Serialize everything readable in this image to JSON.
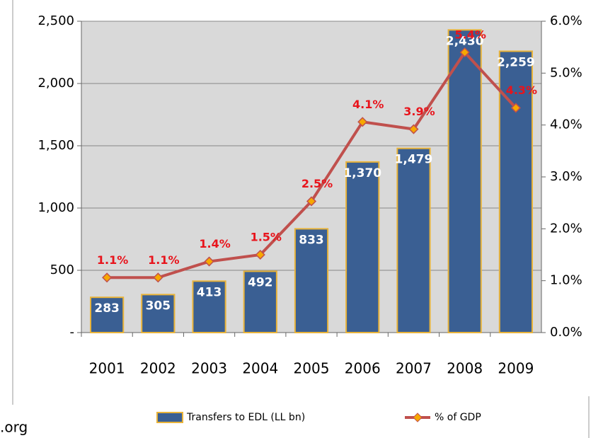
{
  "chart_data": {
    "type": "bar-line",
    "categories": [
      "2001",
      "2002",
      "2003",
      "2004",
      "2005",
      "2006",
      "2007",
      "2008",
      "2009"
    ],
    "series": [
      {
        "name": "Transfers to EDL (LL bn)",
        "type": "bar",
        "color": "#3a5f93",
        "edge_color": "#e8b33a",
        "values": [
          283,
          305,
          413,
          492,
          833,
          1370,
          1479,
          2430,
          2259
        ],
        "value_labels": [
          "283",
          "305",
          "413",
          "492",
          "833",
          "1,370",
          "1,479",
          "2,430",
          "2,259"
        ]
      },
      {
        "name": "% of GDP",
        "type": "line",
        "axis": "y2",
        "color": "#c0504d",
        "marker_color": "#f7a800",
        "values": [
          1.06,
          1.06,
          1.37,
          1.5,
          2.53,
          4.06,
          3.92,
          5.4,
          4.33
        ],
        "value_labels": [
          "1.1%",
          "1.1%",
          "1.4%",
          "1.5%",
          "2.5%",
          "4.1%",
          "3.9%",
          "5.4%",
          "4.3%"
        ]
      }
    ],
    "ylim": [
      0,
      2500
    ],
    "yticks": [
      {
        "value": 0,
        "label": "-"
      },
      500,
      {
        "value": 1000,
        "label": "1,000"
      },
      {
        "value": 1500,
        "label": "1,500"
      },
      {
        "value": 2000,
        "label": "2,000"
      },
      {
        "value": 2500,
        "label": "2,500"
      }
    ],
    "y2lim": [
      0,
      6
    ],
    "y2ticks": [
      {
        "value": 0,
        "label": "0.0%"
      },
      {
        "value": 1,
        "label": "1.0%"
      },
      {
        "value": 2,
        "label": "2.0%"
      },
      {
        "value": 3,
        "label": "3.0%"
      },
      {
        "value": 4,
        "label": "4.0%"
      },
      {
        "value": 5,
        "label": "5.0%"
      },
      {
        "value": 6,
        "label": "6.0%"
      }
    ],
    "grid": true,
    "legend": "bottom",
    "footer_text": ".org"
  }
}
